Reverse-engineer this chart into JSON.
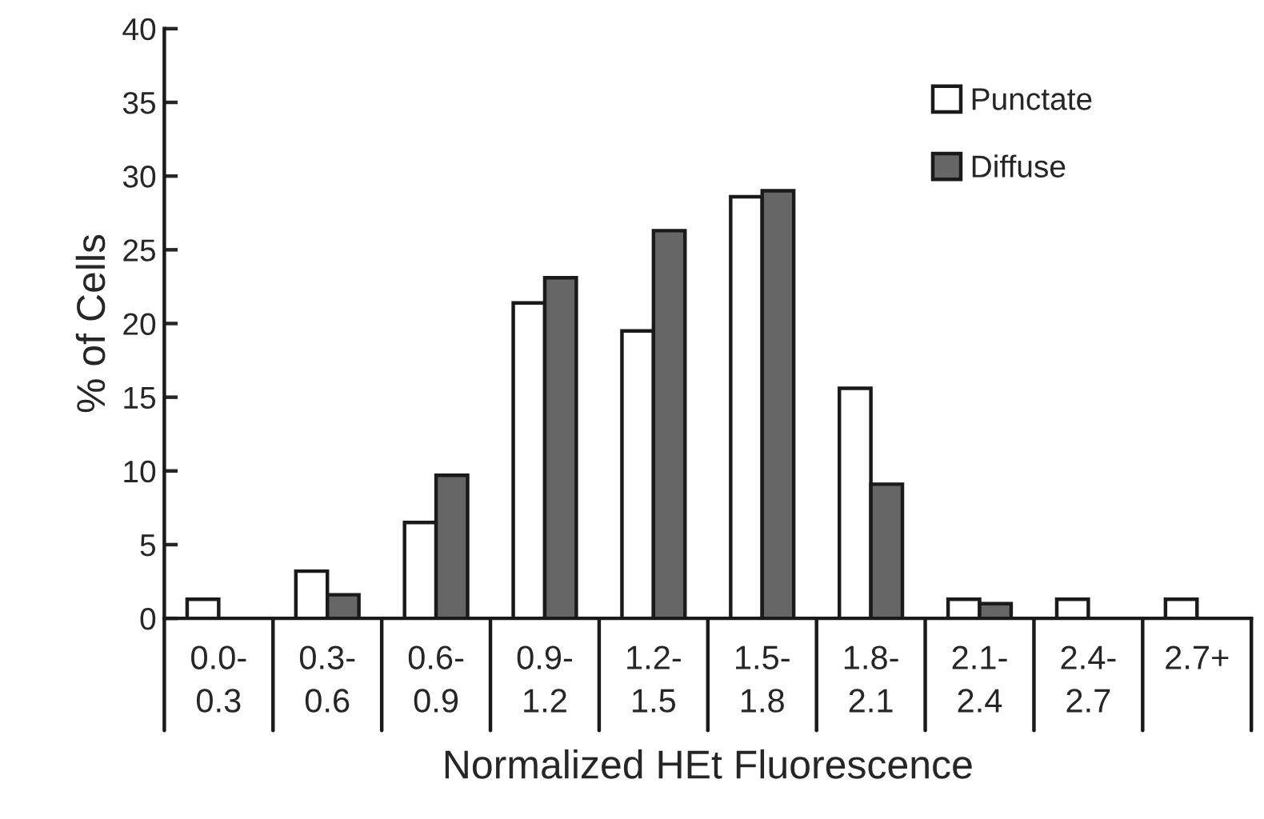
{
  "chart_data": {
    "type": "bar",
    "xlabel": "Normalized HEt Fluorescence",
    "ylabel": "% of Cells",
    "categories": [
      "0.0-\n0.3",
      "0.3-\n0.6",
      "0.6-\n0.9",
      "0.9-\n1.2",
      "1.2-\n1.5",
      "1.5-\n1.8",
      "1.8-\n2.1",
      "2.1-\n2.4",
      "2.4-\n2.7",
      "2.7+"
    ],
    "series": [
      {
        "name": "Punctate",
        "color": "#ffffff",
        "values": [
          1.3,
          3.2,
          6.5,
          21.4,
          19.5,
          28.6,
          15.6,
          1.3,
          1.3,
          1.3
        ]
      },
      {
        "name": "Diffuse",
        "color": "#666666",
        "values": [
          null,
          1.6,
          9.7,
          23.1,
          26.3,
          29.0,
          9.1,
          1.0,
          null,
          null
        ]
      }
    ],
    "ylim": [
      0,
      40
    ],
    "yticks": [
      0,
      5,
      10,
      15,
      20,
      25,
      30,
      35,
      40
    ],
    "grid": false,
    "legend": "top right"
  }
}
